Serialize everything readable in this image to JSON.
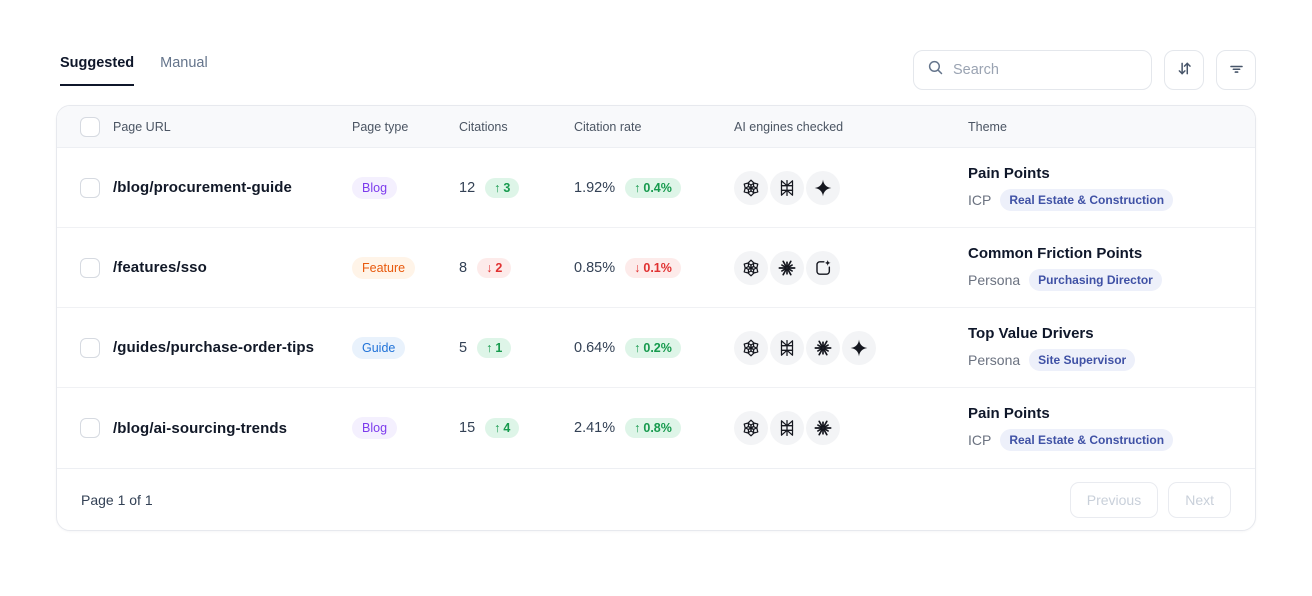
{
  "tabs": {
    "suggested": "Suggested",
    "manual": "Manual"
  },
  "toolbar": {
    "search_placeholder": "Search"
  },
  "columns": {
    "page_url": "Page URL",
    "page_type": "Page type",
    "citations": "Citations",
    "citation_rate": "Citation rate",
    "ai_engines": "AI engines checked",
    "theme": "Theme"
  },
  "rows": [
    {
      "url": "/blog/procurement-guide",
      "page_type": "Blog",
      "citations": "12",
      "citations_delta": "3",
      "citations_trend": "up",
      "rate": "1.92%",
      "rate_delta": "0.4%",
      "rate_trend": "up",
      "engines": [
        "chatgpt",
        "perplexity",
        "gemini"
      ],
      "theme_title": "Pain Points",
      "theme_label": "ICP",
      "theme_badge": "Real Estate & Construction"
    },
    {
      "url": "/features/sso",
      "page_type": "Feature",
      "citations": "8",
      "citations_delta": "2",
      "citations_trend": "down",
      "rate": "0.85%",
      "rate_delta": "0.1%",
      "rate_trend": "down",
      "engines": [
        "chatgpt",
        "claude",
        "ai-overviews"
      ],
      "theme_title": "Common Friction Points",
      "theme_label": "Persona",
      "theme_badge": "Purchasing Director"
    },
    {
      "url": "/guides/purchase-order-tips",
      "page_type": "Guide",
      "citations": "5",
      "citations_delta": "1",
      "citations_trend": "up",
      "rate": "0.64%",
      "rate_delta": "0.2%",
      "rate_trend": "up",
      "engines": [
        "chatgpt",
        "perplexity",
        "claude",
        "gemini"
      ],
      "theme_title": "Top Value Drivers",
      "theme_label": "Persona",
      "theme_badge": "Site Supervisor"
    },
    {
      "url": "/blog/ai-sourcing-trends",
      "page_type": "Blog",
      "citations": "15",
      "citations_delta": "4",
      "citations_trend": "up",
      "rate": "2.41%",
      "rate_delta": "0.8%",
      "rate_trend": "up",
      "engines": [
        "chatgpt",
        "perplexity",
        "claude"
      ],
      "theme_title": "Pain Points",
      "theme_label": "ICP",
      "theme_badge": "Real Estate & Construction"
    }
  ],
  "footer": {
    "page_info": "Page 1 of 1",
    "previous": "Previous",
    "next": "Next"
  },
  "colors": {
    "tab_active": "#0f172a",
    "badge_blog": "#7c3aed",
    "badge_blog_bg": "#f4f0fe",
    "badge_feature": "#e8590c",
    "badge_feature_bg": "#fff4e8",
    "badge_guide": "#2173d8",
    "badge_guide_bg": "#e9f2fc",
    "trend_up": "#169a4d",
    "trend_up_bg": "#def5e8",
    "trend_down": "#e03131",
    "trend_down_bg": "#fdebea",
    "theme_badge": "#3f51a5",
    "theme_badge_bg": "#edf0fa"
  }
}
